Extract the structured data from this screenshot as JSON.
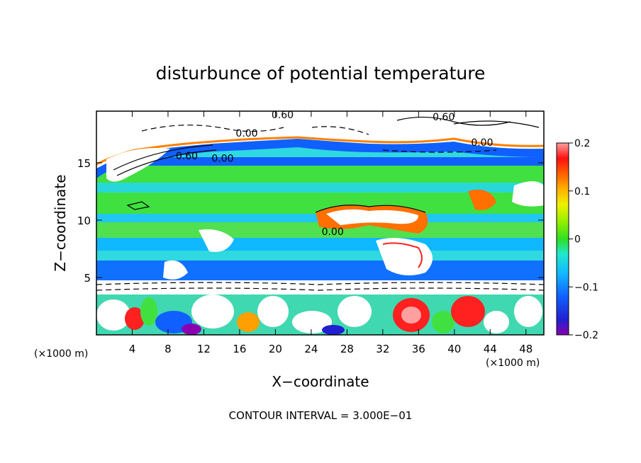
{
  "chart_data": {
    "type": "heatmap",
    "title": "disturbunce of potential temperature",
    "xlabel": "X−coordinate",
    "ylabel": "Z−coordinate",
    "x_unit": "(×1000 m)",
    "y_unit": "(×1000 m)",
    "xlim": [
      0,
      50
    ],
    "ylim": [
      0,
      19.5
    ],
    "x_ticks": [
      4,
      8,
      12,
      16,
      20,
      24,
      28,
      32,
      36,
      40,
      44,
      48
    ],
    "y_ticks": [
      5,
      10,
      15
    ],
    "colorbar": {
      "range": [
        -0.2,
        0.2
      ],
      "tick_values": [
        0.2,
        0.1,
        0,
        -0.1,
        -0.2
      ],
      "tick_labels": [
        "0.2",
        "0.1",
        "0",
        "−0.1",
        "−0.2"
      ]
    },
    "contour_labels": [
      {
        "text": "0.60",
        "x": 20.8,
        "y": 19.2
      },
      {
        "text": "0.60",
        "x": 38.8,
        "y": 19.0
      },
      {
        "text": "0.00",
        "x": 16.8,
        "y": 17.6
      },
      {
        "text": "0.00",
        "x": 43.1,
        "y": 16.8
      },
      {
        "text": "0.60",
        "x": 10.1,
        "y": 15.6
      },
      {
        "text": "0.00",
        "x": 14.1,
        "y": 15.4
      },
      {
        "text": "0.00",
        "x": 26.4,
        "y": 9.0
      }
    ],
    "footer": "CONTOUR INTERVAL = 3.000E−01"
  }
}
